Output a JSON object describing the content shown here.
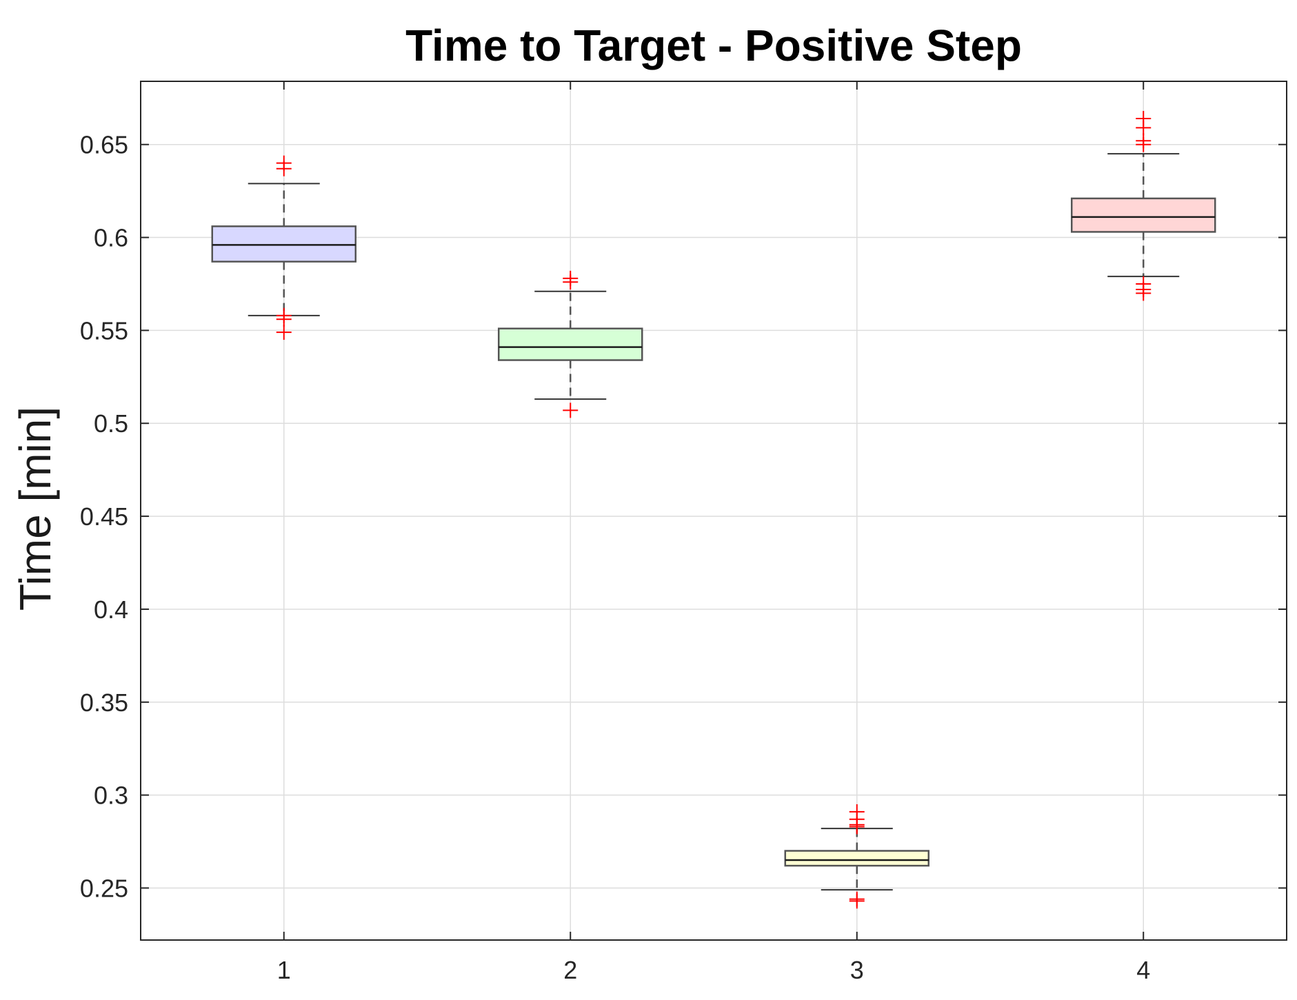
{
  "chart_data": {
    "type": "box",
    "title": "Time to Target - Positive Step",
    "xlabel": "",
    "ylabel": "Time [min]",
    "ylim": [
      0.222,
      0.684
    ],
    "yticks": [
      0.25,
      0.3,
      0.35,
      0.4,
      0.45,
      0.5,
      0.55,
      0.6,
      0.65
    ],
    "ytick_labels": [
      "0.25",
      "0.3",
      "0.35",
      "0.4",
      "0.45",
      "0.5",
      "0.55",
      "0.6",
      "0.65"
    ],
    "xlim": [
      0.5,
      4.5
    ],
    "categories": [
      "1",
      "2",
      "3",
      "4"
    ],
    "grid": true,
    "boxes": [
      {
        "category": "1",
        "whisker_low": 0.558,
        "q1": 0.587,
        "median": 0.596,
        "q3": 0.606,
        "whisker_high": 0.629,
        "outliers": [
          0.64,
          0.637,
          0.558,
          0.556,
          0.549
        ],
        "fill": "#d8d8ff",
        "outline": "#555555"
      },
      {
        "category": "2",
        "whisker_low": 0.513,
        "q1": 0.534,
        "median": 0.541,
        "q3": 0.551,
        "whisker_high": 0.571,
        "outliers": [
          0.578,
          0.576,
          0.507
        ],
        "fill": "#d6ffd6",
        "outline": "#555555"
      },
      {
        "category": "3",
        "whisker_low": 0.249,
        "q1": 0.262,
        "median": 0.265,
        "q3": 0.27,
        "whisker_high": 0.282,
        "outliers": [
          0.291,
          0.287,
          0.284,
          0.283,
          0.244,
          0.243
        ],
        "fill": "#ffffd4",
        "outline": "#555555"
      },
      {
        "category": "4",
        "whisker_low": 0.579,
        "q1": 0.603,
        "median": 0.611,
        "q3": 0.621,
        "whisker_high": 0.645,
        "outliers": [
          0.664,
          0.659,
          0.652,
          0.65,
          0.575,
          0.572,
          0.57
        ],
        "fill": "#ffd6d6",
        "outline": "#555555"
      }
    ],
    "colors": {
      "outlier": "#ff0000",
      "grid": "#dddddd",
      "axis": "#262626",
      "median": "#1a1a1a",
      "whisker": "#555555"
    }
  }
}
